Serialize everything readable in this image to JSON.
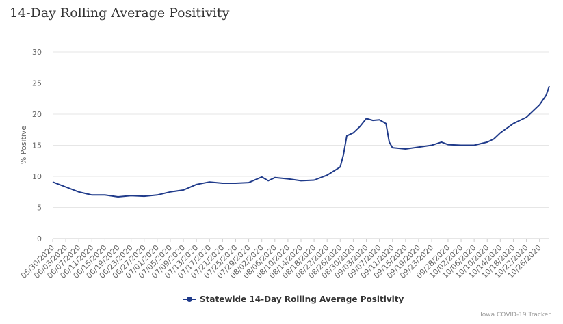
{
  "page_title": "14-Day Rolling Average Positivity",
  "credit": "Iowa COVID-19 Tracker",
  "colors": {
    "series": "#1f3a8a",
    "grid": "#e6e6e6",
    "text": "#666666"
  },
  "chart_data": {
    "type": "line",
    "title": "14-Day Rolling Average Positivity",
    "xlabel": "",
    "ylabel": "% Positive",
    "ylim": [
      0,
      30
    ],
    "yticks": [
      0,
      5,
      10,
      15,
      20,
      25,
      30
    ],
    "grid": true,
    "legend_position": "bottom",
    "x_start": "05/30/2020",
    "x_end": "10/29/2020",
    "x_tick_labels": [
      "05/30/2020",
      "06/03/2020",
      "06/07/2020",
      "06/11/2020",
      "06/15/2020",
      "06/19/2020",
      "06/23/2020",
      "06/27/2020",
      "07/01/2020",
      "07/05/2020",
      "07/09/2020",
      "07/13/2020",
      "07/17/2020",
      "07/21/2020",
      "07/25/2020",
      "07/29/2020",
      "08/02/2020",
      "08/06/2020",
      "08/10/2020",
      "08/14/2020",
      "08/18/2020",
      "08/22/2020",
      "08/26/2020",
      "08/30/2020",
      "09/03/2020",
      "09/07/2020",
      "09/11/2020",
      "09/15/2020",
      "09/19/2020",
      "09/23/2020",
      "09/28/2020",
      "10/02/2020",
      "10/06/2020",
      "10/10/2020",
      "10/14/2020",
      "10/18/2020",
      "10/22/2020",
      "10/26/2020"
    ],
    "series": [
      {
        "name": "Statewide 14-Day Rolling Average Positivity",
        "x": [
          "05/30/2020",
          "06/03/2020",
          "06/07/2020",
          "06/11/2020",
          "06/15/2020",
          "06/19/2020",
          "06/23/2020",
          "06/27/2020",
          "07/01/2020",
          "07/05/2020",
          "07/09/2020",
          "07/13/2020",
          "07/17/2020",
          "07/21/2020",
          "07/25/2020",
          "07/29/2020",
          "08/02/2020",
          "08/04/2020",
          "08/06/2020",
          "08/10/2020",
          "08/14/2020",
          "08/18/2020",
          "08/22/2020",
          "08/26/2020",
          "08/27/2020",
          "08/28/2020",
          "08/30/2020",
          "09/01/2020",
          "09/03/2020",
          "09/05/2020",
          "09/07/2020",
          "09/09/2020",
          "09/10/2020",
          "09/11/2020",
          "09/15/2020",
          "09/19/2020",
          "09/23/2020",
          "09/26/2020",
          "09/28/2020",
          "10/02/2020",
          "10/06/2020",
          "10/10/2020",
          "10/12/2020",
          "10/14/2020",
          "10/18/2020",
          "10/22/2020",
          "10/26/2020",
          "10/28/2020",
          "10/29/2020"
        ],
        "y": [
          9.1,
          8.3,
          7.5,
          7.0,
          7.0,
          6.7,
          6.9,
          6.8,
          7.0,
          7.5,
          7.8,
          8.7,
          9.1,
          8.9,
          8.9,
          9.0,
          9.9,
          9.3,
          9.8,
          9.6,
          9.3,
          9.4,
          10.2,
          11.5,
          13.5,
          16.5,
          17.0,
          18.0,
          19.3,
          19.0,
          19.1,
          18.5,
          15.5,
          14.6,
          14.4,
          14.7,
          15.0,
          15.5,
          15.1,
          15.0,
          15.0,
          15.5,
          16.0,
          17.0,
          18.5,
          19.5,
          21.5,
          23.0,
          24.5
        ]
      }
    ]
  }
}
